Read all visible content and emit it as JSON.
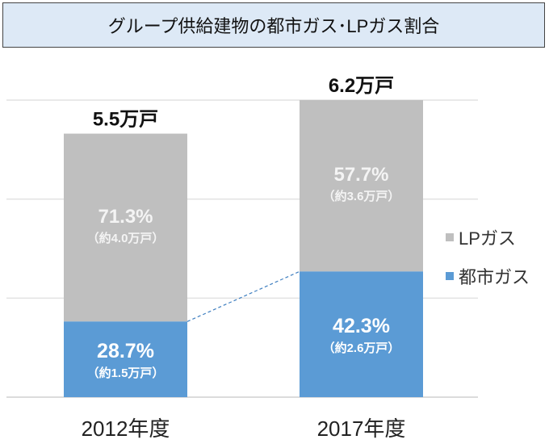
{
  "chart_data": {
    "type": "bar",
    "stacked": true,
    "title": "グループ供給建物の都市ガス･LPガス割合",
    "categories": [
      "2012年度",
      "2017年度"
    ],
    "totals": [
      5.5,
      6.2
    ],
    "total_labels": [
      "5.5万戸",
      "6.2万戸"
    ],
    "series": [
      {
        "name": "都市ガス",
        "color": "#5b9bd5",
        "percent": [
          28.7,
          42.3
        ],
        "values": [
          1.5,
          2.6
        ],
        "labels": [
          "28.7%",
          "42.3%"
        ],
        "sublabels": [
          "（約1.5万戸）",
          "（約2.6万戸）"
        ]
      },
      {
        "name": "LPガス",
        "color": "#bfbfbf",
        "percent": [
          71.3,
          57.7
        ],
        "values": [
          4.0,
          3.6
        ],
        "labels": [
          "71.3%",
          "57.7%"
        ],
        "sublabels": [
          "（約4.0万戸）",
          "（約3.6万戸）"
        ]
      }
    ],
    "ylim": [
      0,
      6.2
    ],
    "grid": true,
    "legend": "right",
    "connector": "dashed line between 都市ガス tops"
  }
}
